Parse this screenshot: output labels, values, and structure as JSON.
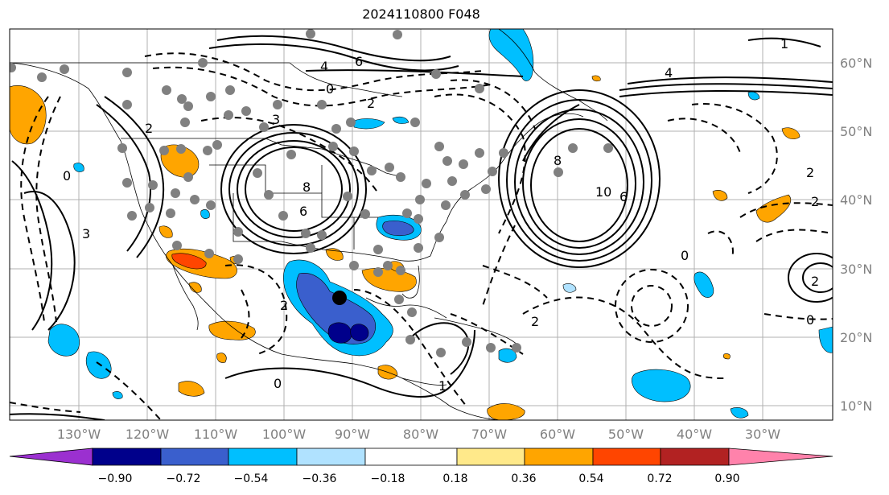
{
  "title": "2024110800 F048",
  "lon_labels": [
    "130°W",
    "120°W",
    "110°W",
    "100°W",
    "90°W",
    "80°W",
    "70°W",
    "60°W",
    "50°W",
    "40°W",
    "30°W"
  ],
  "lat_labels": [
    "60°N",
    "50°N",
    "40°N",
    "30°N",
    "20°N",
    "10°N"
  ],
  "colorbar": {
    "ticks": [
      "−0.90",
      "−0.72",
      "−0.54",
      "−0.36",
      "−0.18",
      "0.18",
      "0.36",
      "0.54",
      "0.72",
      "0.90"
    ],
    "colors": [
      "#9b30d0",
      "#00008b",
      "#3a5fcd",
      "#00bfff",
      "#b0e2ff",
      "#ffffff",
      "#ffe98a",
      "#ffa500",
      "#ff4500",
      "#b22222",
      "#ff82ab"
    ]
  },
  "contour_labels": [
    {
      "text": "6"
    },
    {
      "text": "4"
    },
    {
      "text": "0"
    },
    {
      "text": "2"
    },
    {
      "text": "3"
    },
    {
      "text": "8"
    },
    {
      "text": "6"
    },
    {
      "text": "10"
    },
    {
      "text": "8"
    },
    {
      "text": "6"
    },
    {
      "text": "4"
    },
    {
      "text": "2"
    },
    {
      "text": "0"
    },
    {
      "text": "2"
    },
    {
      "text": "0"
    },
    {
      "text": "2"
    },
    {
      "text": "1"
    },
    {
      "text": "2"
    },
    {
      "text": "0"
    },
    {
      "text": "2"
    },
    {
      "text": "2"
    },
    {
      "text": "3"
    },
    {
      "text": "1"
    },
    {
      "text": "0"
    }
  ]
}
